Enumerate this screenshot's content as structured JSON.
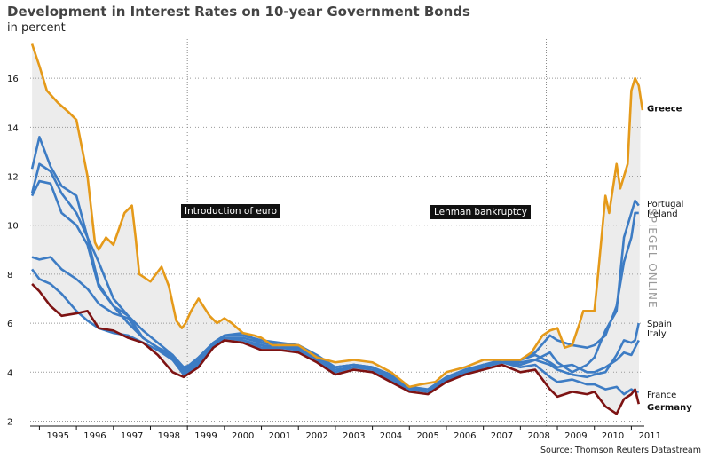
{
  "title": "Development in Interest Rates on 10-year Government Bonds",
  "subtitle": "in percent",
  "source": "Source: Thomson Reuters Datastream",
  "watermark": "SPIEGEL ONLINE",
  "annotations": {
    "euro": "Introduction of euro",
    "lehman": "Lehman bankruptcy"
  },
  "colors": {
    "greece": "#e59a1a",
    "blue": "#3d7cc4",
    "germany": "#7d1313",
    "band": "#ececec",
    "grid": "#999999"
  },
  "chart_data": {
    "type": "line",
    "title": "Development in Interest Rates on 10-year Government Bonds",
    "ylabel": "in percent",
    "ylim": [
      1.8,
      17.6
    ],
    "xlim": [
      1994.75,
      2011.35
    ],
    "yticks": [
      2,
      4,
      6,
      8,
      10,
      12,
      14,
      16
    ],
    "xtick_labels": [
      "1995",
      "1996",
      "1997",
      "1998",
      "1999",
      "2000",
      "2001",
      "2002",
      "2003",
      "2004",
      "2005",
      "2006",
      "2007",
      "2008",
      "2009",
      "2010",
      "2011"
    ],
    "grid": true,
    "shaded_band": "between highest and lowest series",
    "events": [
      {
        "x": 1999.0,
        "label": "Introduction of euro"
      },
      {
        "x": 2008.7,
        "label": "Lehman bankruptcy"
      }
    ],
    "series": [
      {
        "name": "Greece",
        "color": "#e59a1a",
        "bold": true,
        "x": [
          1994.8,
          1995.0,
          1995.2,
          1995.5,
          1995.8,
          1996.0,
          1996.3,
          1996.5,
          1996.6,
          1996.8,
          1997.0,
          1997.3,
          1997.5,
          1997.6,
          1997.7,
          1997.9,
          1998.0,
          1998.3,
          1998.5,
          1998.7,
          1998.85,
          1998.95,
          1999.1,
          1999.3,
          1999.6,
          1999.8,
          2000.0,
          2000.2,
          2000.5,
          2000.8,
          2001.0,
          2001.3,
          2001.6,
          2002.0,
          2002.5,
          2003.0,
          2003.5,
          2004.0,
          2004.5,
          2005.0,
          2005.3,
          2005.7,
          2006.0,
          2006.5,
          2007.0,
          2007.5,
          2008.0,
          2008.3,
          2008.6,
          2008.8,
          2009.0,
          2009.2,
          2009.4,
          2009.6,
          2009.7,
          2009.8,
          2010.0,
          2010.1,
          2010.3,
          2010.4,
          2010.5,
          2010.6,
          2010.7,
          2010.8,
          2010.9,
          2011.0,
          2011.1,
          2011.2,
          2011.3
        ],
        "y": [
          17.4,
          16.5,
          15.5,
          15.0,
          14.6,
          14.3,
          12.0,
          9.3,
          9.0,
          9.5,
          9.2,
          10.5,
          10.8,
          9.5,
          8.0,
          7.8,
          7.7,
          8.3,
          7.5,
          6.1,
          5.8,
          6.0,
          6.5,
          7.0,
          6.3,
          6.0,
          6.2,
          6.0,
          5.6,
          5.5,
          5.4,
          5.1,
          5.1,
          5.1,
          4.6,
          4.4,
          4.5,
          4.4,
          4.0,
          3.4,
          3.5,
          3.6,
          4.0,
          4.2,
          4.5,
          4.5,
          4.5,
          4.8,
          5.5,
          5.7,
          5.8,
          5.0,
          5.1,
          6.0,
          6.5,
          6.5,
          6.5,
          8.0,
          11.2,
          10.5,
          11.5,
          12.5,
          11.5,
          12.0,
          12.5,
          15.5,
          16.0,
          15.7,
          14.7
        ]
      },
      {
        "name": "Portugal",
        "color": "#3d7cc4",
        "x": [
          1994.8,
          1995.0,
          1995.3,
          1995.6,
          1996.0,
          1996.3,
          1996.6,
          1997.0,
          1997.4,
          1997.8,
          1998.2,
          1998.6,
          1998.9,
          1999.3,
          1999.7,
          2000.0,
          2000.5,
          2001.0,
          2001.5,
          2002.0,
          2002.5,
          2003.0,
          2003.5,
          2004.0,
          2004.5,
          2005.0,
          2005.5,
          2006.0,
          2006.5,
          2007.0,
          2007.5,
          2008.0,
          2008.4,
          2008.8,
          2009.0,
          2009.4,
          2009.8,
          2010.0,
          2010.3,
          2010.6,
          2010.8,
          2011.0,
          2011.1,
          2011.2
        ],
        "y": [
          12.3,
          13.6,
          12.4,
          11.6,
          11.2,
          9.5,
          7.6,
          6.7,
          6.0,
          5.4,
          5.0,
          4.5,
          4.1,
          4.6,
          5.2,
          5.5,
          5.6,
          5.2,
          5.1,
          5.0,
          4.6,
          4.2,
          4.3,
          4.2,
          3.8,
          3.4,
          3.2,
          3.7,
          4.0,
          4.3,
          4.4,
          4.4,
          4.5,
          4.8,
          4.4,
          4.0,
          4.3,
          4.6,
          5.7,
          6.5,
          9.5,
          10.5,
          11.0,
          10.8
        ]
      },
      {
        "name": "Ireland",
        "color": "#3d7cc4",
        "x": [
          1994.8,
          1995.0,
          1995.3,
          1995.6,
          1996.0,
          1996.3,
          1996.6,
          1997.0,
          1997.4,
          1997.8,
          1998.2,
          1998.6,
          1998.9,
          1999.3,
          1999.7,
          2000.0,
          2000.5,
          2001.0,
          2001.5,
          2002.0,
          2002.5,
          2003.0,
          2003.5,
          2004.0,
          2004.5,
          2005.0,
          2005.5,
          2006.0,
          2006.5,
          2007.0,
          2007.5,
          2008.0,
          2008.4,
          2008.8,
          2009.0,
          2009.4,
          2009.8,
          2010.0,
          2010.3,
          2010.6,
          2010.8,
          2011.0,
          2011.1,
          2011.2
        ],
        "y": [
          8.7,
          8.6,
          8.7,
          8.2,
          7.8,
          7.4,
          6.8,
          6.4,
          6.2,
          5.4,
          5.0,
          4.6,
          4.0,
          4.5,
          5.1,
          5.4,
          5.3,
          5.1,
          5.0,
          5.0,
          4.6,
          4.2,
          4.3,
          4.2,
          3.8,
          3.3,
          3.2,
          3.7,
          4.0,
          4.3,
          4.4,
          4.5,
          4.8,
          5.5,
          5.3,
          5.1,
          5.0,
          5.1,
          5.5,
          6.7,
          8.5,
          9.5,
          10.5,
          10.5
        ]
      },
      {
        "name": "Spain",
        "color": "#3d7cc4",
        "x": [
          1994.8,
          1995.0,
          1995.3,
          1995.6,
          1996.0,
          1996.3,
          1996.6,
          1997.0,
          1997.4,
          1997.8,
          1998.2,
          1998.6,
          1998.9,
          1999.3,
          1999.7,
          2000.0,
          2000.5,
          2001.0,
          2001.5,
          2002.0,
          2002.5,
          2003.0,
          2003.5,
          2004.0,
          2004.5,
          2005.0,
          2005.5,
          2006.0,
          2006.5,
          2007.0,
          2007.5,
          2008.0,
          2008.4,
          2008.8,
          2009.0,
          2009.4,
          2009.8,
          2010.0,
          2010.3,
          2010.6,
          2010.8,
          2011.0,
          2011.1,
          2011.2
        ],
        "y": [
          11.2,
          11.8,
          11.7,
          10.5,
          10.0,
          9.2,
          7.5,
          6.7,
          6.3,
          5.7,
          5.2,
          4.7,
          4.0,
          4.4,
          5.1,
          5.4,
          5.4,
          5.2,
          5.1,
          5.0,
          4.6,
          4.1,
          4.2,
          4.2,
          3.7,
          3.3,
          3.2,
          3.7,
          3.9,
          4.2,
          4.4,
          4.3,
          4.5,
          4.3,
          4.1,
          3.9,
          3.8,
          3.9,
          4.0,
          4.7,
          5.3,
          5.2,
          5.3,
          6.0
        ]
      },
      {
        "name": "Italy",
        "color": "#3d7cc4",
        "x": [
          1994.8,
          1995.0,
          1995.3,
          1995.6,
          1996.0,
          1996.3,
          1996.6,
          1997.0,
          1997.4,
          1997.8,
          1998.2,
          1998.6,
          1998.9,
          1999.3,
          1999.7,
          2000.0,
          2000.5,
          2001.0,
          2001.5,
          2002.0,
          2002.5,
          2003.0,
          2003.5,
          2004.0,
          2004.5,
          2005.0,
          2005.5,
          2006.0,
          2006.5,
          2007.0,
          2007.5,
          2008.0,
          2008.4,
          2008.8,
          2009.0,
          2009.4,
          2009.8,
          2010.0,
          2010.3,
          2010.6,
          2010.8,
          2011.0,
          2011.1,
          2011.2
        ],
        "y": [
          11.3,
          12.5,
          12.2,
          11.3,
          10.5,
          9.5,
          8.5,
          7.0,
          6.3,
          5.4,
          5.0,
          4.7,
          4.2,
          4.4,
          5.2,
          5.5,
          5.5,
          5.3,
          5.2,
          5.1,
          4.7,
          4.2,
          4.3,
          4.2,
          3.9,
          3.4,
          3.3,
          3.8,
          4.1,
          4.3,
          4.5,
          4.5,
          4.7,
          4.4,
          4.2,
          4.3,
          4.0,
          4.0,
          4.2,
          4.5,
          4.8,
          4.7,
          5.0,
          5.3
        ]
      },
      {
        "name": "France",
        "color": "#3d7cc4",
        "x": [
          1994.8,
          1995.0,
          1995.3,
          1995.6,
          1996.0,
          1996.3,
          1996.6,
          1997.0,
          1997.4,
          1997.8,
          1998.2,
          1998.6,
          1998.9,
          1999.3,
          1999.7,
          2000.0,
          2000.5,
          2001.0,
          2001.5,
          2002.0,
          2002.5,
          2003.0,
          2003.5,
          2004.0,
          2004.5,
          2005.0,
          2005.5,
          2006.0,
          2006.5,
          2007.0,
          2007.5,
          2008.0,
          2008.4,
          2008.8,
          2009.0,
          2009.4,
          2009.8,
          2010.0,
          2010.3,
          2010.6,
          2010.8,
          2011.0,
          2011.1,
          2011.2
        ],
        "y": [
          8.2,
          7.8,
          7.6,
          7.2,
          6.5,
          6.1,
          5.8,
          5.6,
          5.5,
          5.2,
          4.9,
          4.5,
          3.9,
          4.3,
          5.0,
          5.4,
          5.3,
          5.0,
          5.0,
          4.9,
          4.5,
          4.0,
          4.2,
          4.1,
          3.7,
          3.3,
          3.2,
          3.7,
          3.9,
          4.3,
          4.4,
          4.2,
          4.3,
          3.8,
          3.6,
          3.7,
          3.5,
          3.5,
          3.3,
          3.4,
          3.1,
          3.3,
          3.2,
          3.2
        ]
      },
      {
        "name": "Germany",
        "color": "#7d1313",
        "bold": true,
        "x": [
          1994.8,
          1995.0,
          1995.3,
          1995.6,
          1996.0,
          1996.3,
          1996.6,
          1997.0,
          1997.4,
          1997.8,
          1998.2,
          1998.6,
          1998.9,
          1999.3,
          1999.7,
          2000.0,
          2000.5,
          2001.0,
          2001.5,
          2002.0,
          2002.5,
          2003.0,
          2003.5,
          2004.0,
          2004.5,
          2005.0,
          2005.5,
          2006.0,
          2006.5,
          2007.0,
          2007.5,
          2008.0,
          2008.4,
          2008.8,
          2009.0,
          2009.4,
          2009.8,
          2010.0,
          2010.3,
          2010.6,
          2010.8,
          2011.0,
          2011.1,
          2011.2
        ],
        "y": [
          7.6,
          7.3,
          6.7,
          6.3,
          6.4,
          6.5,
          5.8,
          5.7,
          5.4,
          5.2,
          4.7,
          4.0,
          3.8,
          4.2,
          5.0,
          5.3,
          5.2,
          4.9,
          4.9,
          4.8,
          4.4,
          3.9,
          4.1,
          4.0,
          3.6,
          3.2,
          3.1,
          3.6,
          3.9,
          4.1,
          4.3,
          4.0,
          4.1,
          3.3,
          3.0,
          3.2,
          3.1,
          3.2,
          2.6,
          2.3,
          2.9,
          3.1,
          3.3,
          2.7
        ]
      }
    ],
    "series_labels": [
      {
        "text": "Greece",
        "y": 14.8,
        "bold": true
      },
      {
        "text": "Portugal",
        "y": 10.9,
        "bold": false
      },
      {
        "text": "Ireland",
        "y": 10.5,
        "bold": false
      },
      {
        "text": "Spain",
        "y": 6.0,
        "bold": false
      },
      {
        "text": "Italy",
        "y": 5.6,
        "bold": false
      },
      {
        "text": "France",
        "y": 3.1,
        "bold": false
      },
      {
        "text": "Germany",
        "y": 2.6,
        "bold": true
      }
    ]
  }
}
